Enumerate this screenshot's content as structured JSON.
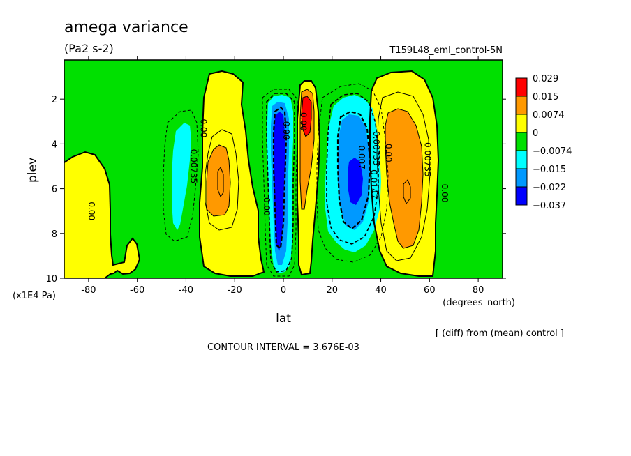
{
  "chart_data": {
    "type": "contour",
    "title": "amega variance",
    "units": "(Pa2 s-2)",
    "run_label": "T159L48_eml_control-5N",
    "xlabel": "lat",
    "xunits": "(degrees_north)",
    "ylabel": "plev",
    "yunits": "(x1E4 Pa)",
    "xlim": [
      -90,
      90
    ],
    "ylim": [
      10,
      0.25
    ],
    "xticks": [
      -80,
      -60,
      -40,
      -20,
      0,
      20,
      40,
      60,
      80
    ],
    "yticks": [
      2,
      4,
      6,
      8,
      10
    ],
    "xtick_labels": [
      "-80",
      "-60",
      "-40",
      "-20",
      "0",
      "20",
      "40",
      "60",
      "80"
    ],
    "ytick_labels": [
      "2",
      "4",
      "6",
      "8",
      "10"
    ],
    "diff_note": "[ (diff) from (mean) control ]",
    "contour_interval_text": "CONTOUR INTERVAL = 3.676E-03",
    "colorbar": {
      "labels": [
        "0.029",
        "0.015",
        "0.0074",
        "0",
        "-0.0074",
        "-0.015",
        "-0.022",
        "-0.037"
      ],
      "colors": [
        "#ff0000",
        "#ff9900",
        "#ffff00",
        "#00e000",
        "#00ffff",
        "#0099ff",
        "#0000ff"
      ]
    },
    "contour_labels": [
      {
        "text": "0.00",
        "lat": -80,
        "plev": 7.0
      },
      {
        "text": "0.00735",
        "lat": -38,
        "plev": 5.0
      },
      {
        "text": "0.00",
        "lat": -34,
        "plev": 3.3
      },
      {
        "text": "0.00",
        "lat": -8,
        "plev": 6.8
      },
      {
        "text": "0.00",
        "lat": 0,
        "plev": 3.4
      },
      {
        "text": "0.00",
        "lat": 7,
        "plev": 3.0
      },
      {
        "text": "0.007",
        "lat": 31,
        "plev": 4.6
      },
      {
        "text": "0.00735",
        "lat": 37,
        "plev": 4.2
      },
      {
        "text": "0.0147",
        "lat": 36,
        "plev": 5.8
      },
      {
        "text": "0.00",
        "lat": 42,
        "plev": 4.4
      },
      {
        "text": "0.00735",
        "lat": 58,
        "plev": 4.7
      },
      {
        "text": "0.00",
        "lat": 65,
        "plev": 6.2
      }
    ]
  },
  "colors": {
    "yellow": "#ffff00",
    "orange": "#ff9900",
    "red": "#ff0000",
    "green": "#00e000",
    "cyan": "#00ffff",
    "lightblue": "#0099ff",
    "blue": "#0000ff"
  }
}
